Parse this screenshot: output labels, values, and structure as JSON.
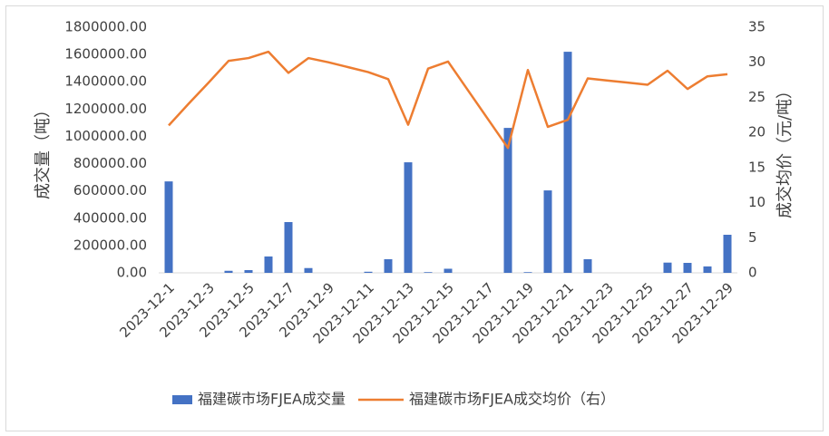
{
  "chart_data": {
    "type": "bar_line",
    "y_label": "成交量（吨）",
    "y2_label": "成交均价（元/吨）",
    "categories": [
      "2023-12-1",
      null,
      "2023-12-3",
      null,
      "2023-12-5",
      null,
      "2023-12-7",
      null,
      "2023-12-9",
      null,
      "2023-12-11",
      null,
      "2023-12-13",
      null,
      "2023-12-15",
      null,
      "2023-12-17",
      null,
      "2023-12-19",
      null,
      "2023-12-21",
      null,
      "2023-12-23",
      null,
      "2023-12-25",
      null,
      "2023-12-27",
      null,
      "2023-12-29"
    ],
    "series": [
      {
        "name": "福建碳市场FJEA成交量",
        "type": "bar",
        "color": "#4472c4",
        "values": [
          670000,
          0,
          0,
          15000,
          20000,
          120000,
          372000,
          35000,
          0,
          0,
          8000,
          100000,
          810000,
          5000,
          30000,
          0,
          0,
          1062000,
          5000,
          604000,
          1620000,
          100000,
          0,
          0,
          0,
          75000,
          73000,
          47000,
          279000
        ]
      },
      {
        "name": "福建碳市场FJEA成交均价（右）",
        "type": "line",
        "axis": "y2",
        "color": "#ed7d31",
        "values": [
          21.0,
          24.1,
          27.1,
          30.2,
          30.6,
          31.5,
          28.5,
          30.6,
          30.0,
          29.3,
          28.6,
          27.6,
          21.1,
          29.1,
          30.1,
          26.0,
          21.9,
          17.8,
          28.9,
          20.8,
          21.8,
          27.7,
          27.4,
          27.1,
          26.8,
          28.8,
          26.2,
          28.0,
          28.3
        ]
      }
    ],
    "ylim": [
      0,
      1800000
    ],
    "yticks": [
      {
        "value": 0,
        "label": "0.00"
      },
      {
        "value": 200000,
        "label": "200000.00"
      },
      {
        "value": 400000,
        "label": "400000.00"
      },
      {
        "value": 600000,
        "label": "600000.00"
      },
      {
        "value": 800000,
        "label": "800000.00"
      },
      {
        "value": 1000000,
        "label": "1000000.00"
      },
      {
        "value": 1200000,
        "label": "1200000.00"
      },
      {
        "value": 1400000,
        "label": "1400000.00"
      },
      {
        "value": 1600000,
        "label": "1600000.00"
      },
      {
        "value": 1800000,
        "label": "1800000.00"
      }
    ],
    "y2lim": [
      0,
      35
    ],
    "y2ticks": [
      0,
      5,
      10,
      15,
      20,
      25,
      30,
      35
    ],
    "legend": "bottom"
  }
}
